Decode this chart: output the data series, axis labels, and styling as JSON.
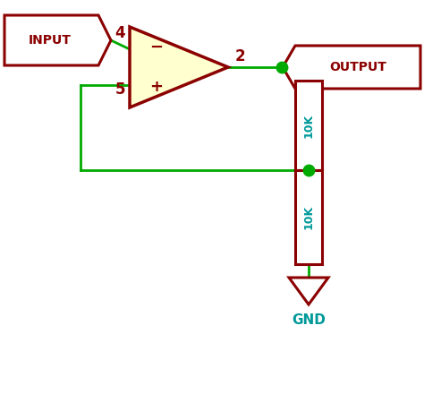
{
  "bg_color": "#ffffff",
  "wire_color": "#00aa00",
  "dark_red": "#8b0000",
  "teal": "#009999",
  "input_label": "INPUT",
  "output_label": "OUTPUT",
  "gnd_label": "GND",
  "res_label": "10K",
  "pin4_label": "4",
  "pin5_label": "5",
  "pin2_label": "2",
  "lw": 2.0
}
